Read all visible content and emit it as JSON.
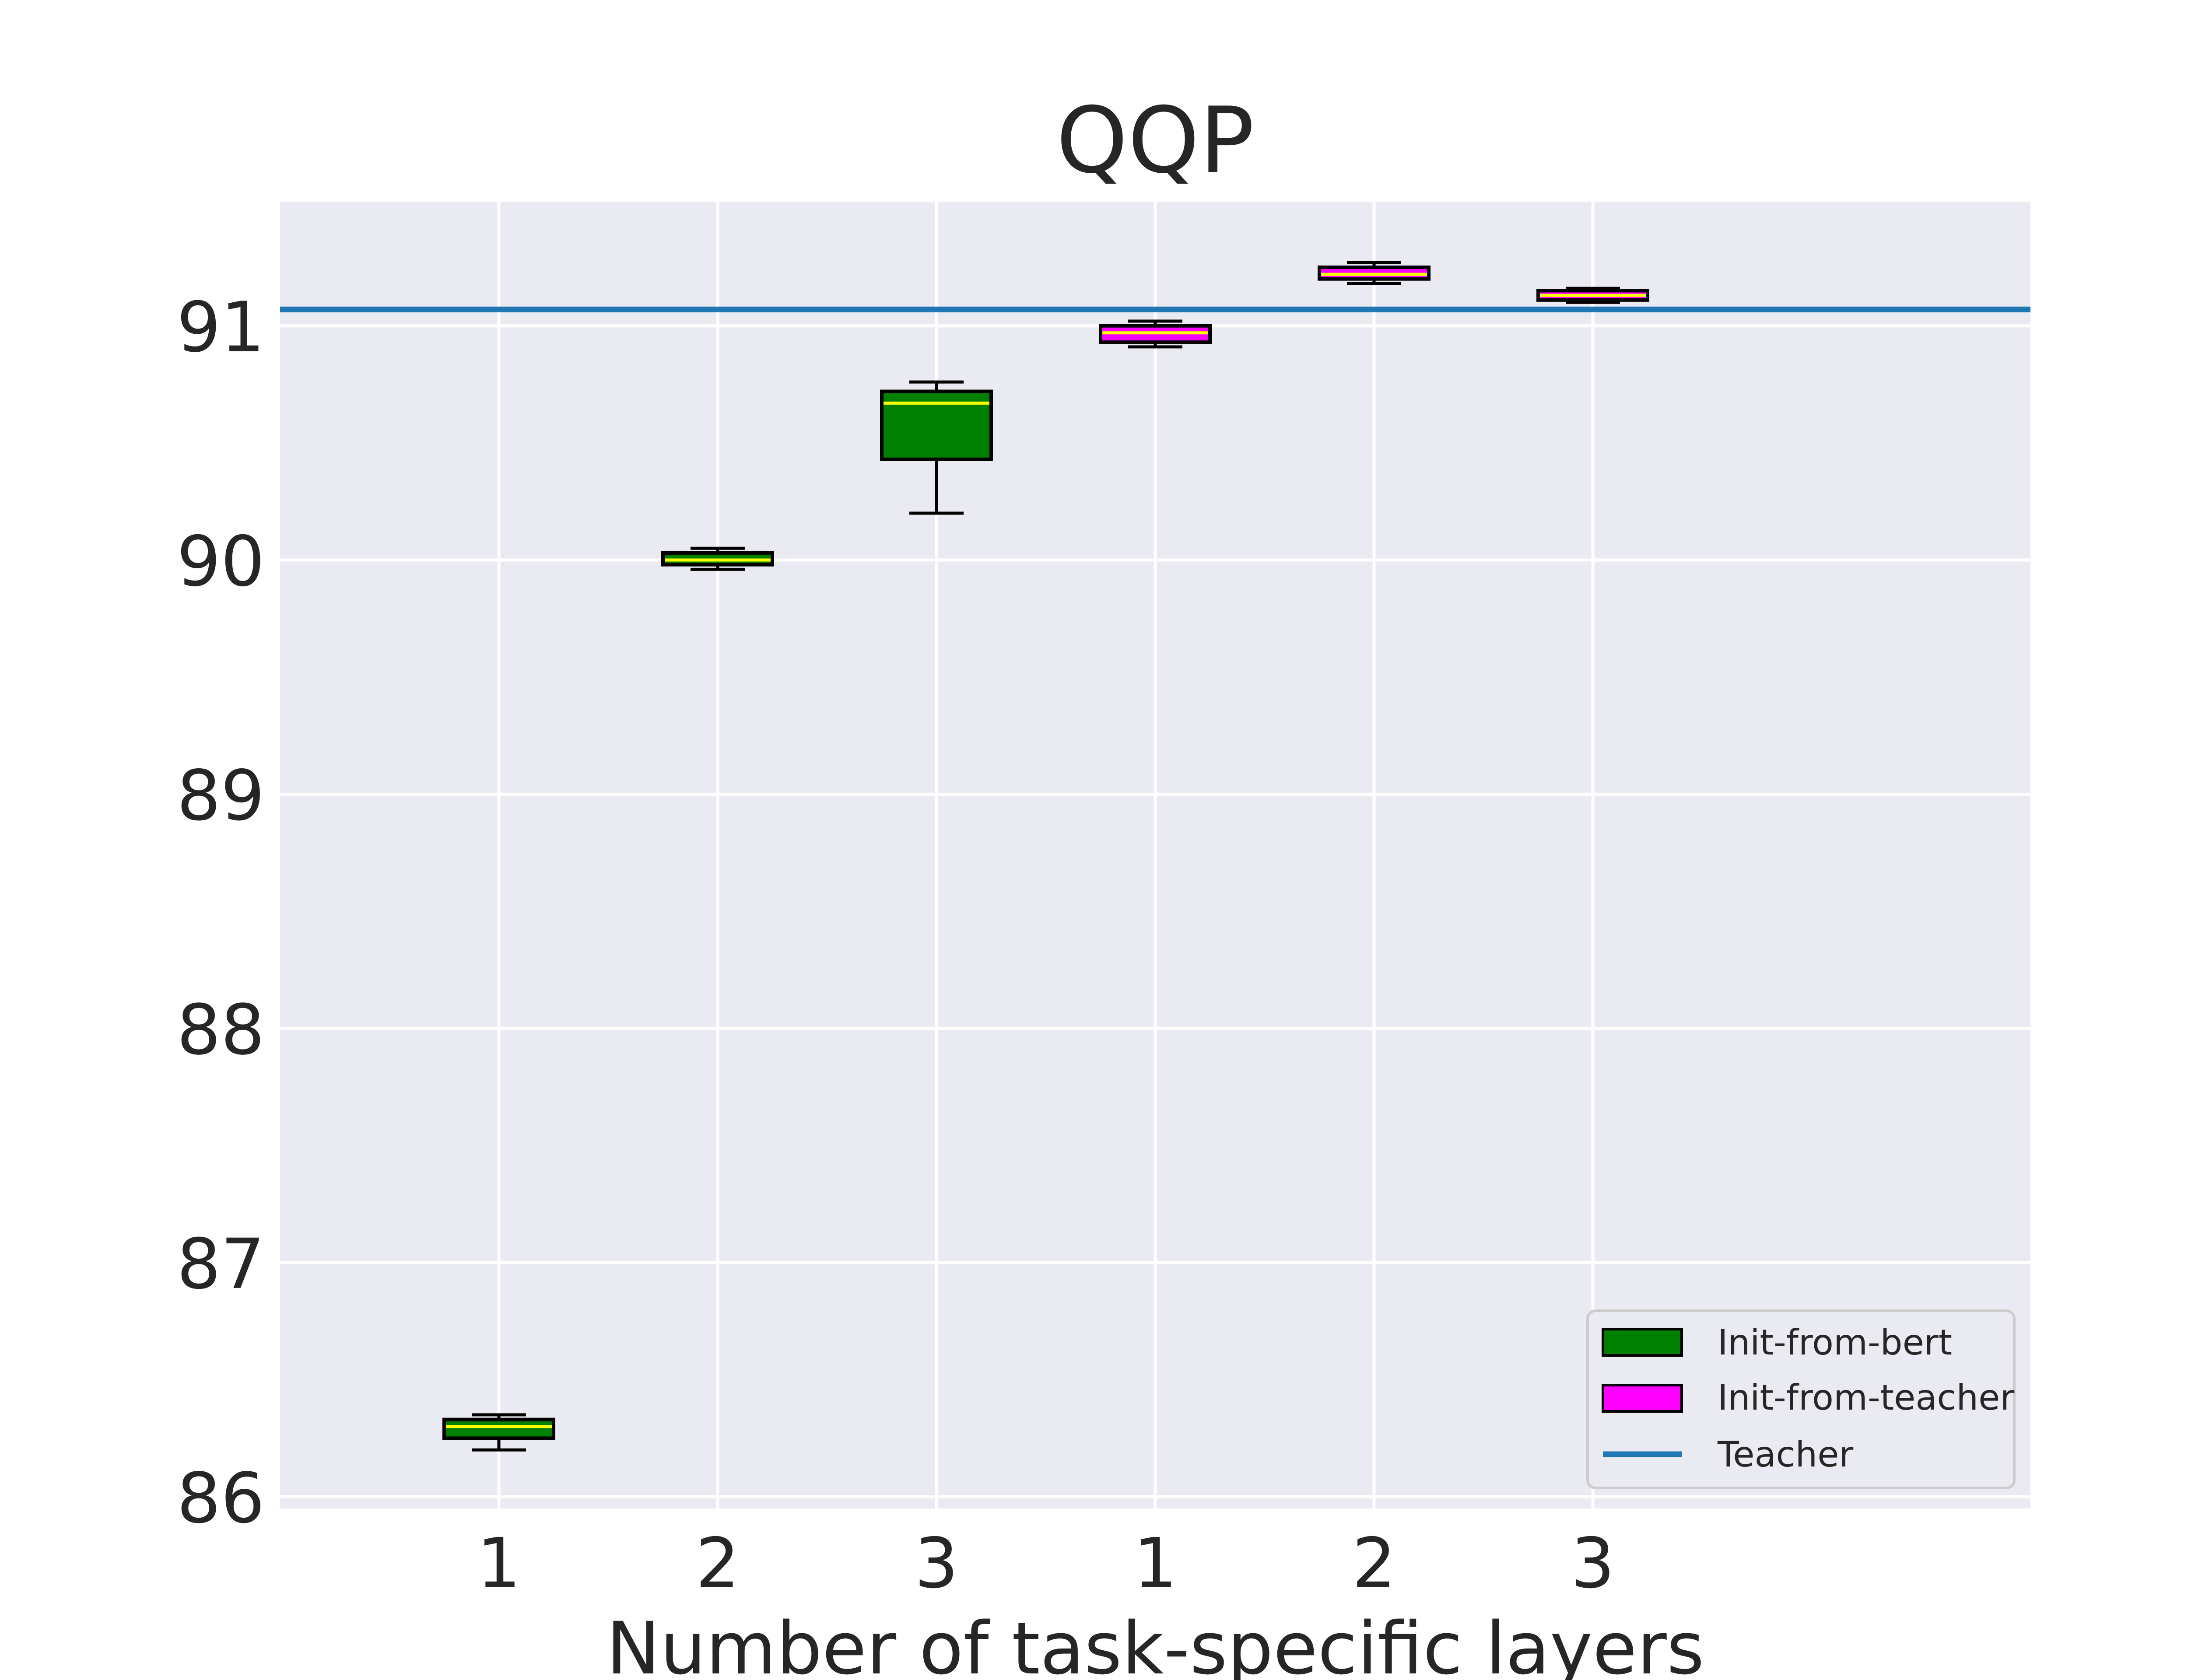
{
  "chart_data": {
    "type": "boxplot",
    "title": "QQP",
    "xlabel": "Number of task-specific layers",
    "ylabel": "",
    "ylim": [
      85.95,
      91.53
    ],
    "xlim": [
      0,
      8
    ],
    "yticks": [
      86,
      87,
      88,
      89,
      90,
      91
    ],
    "categories": [
      "1",
      "2",
      "3",
      "1",
      "2",
      "3"
    ],
    "grid": true,
    "legend_position": "lower-right",
    "series": [
      {
        "name": "Init-from-bert",
        "color": "#008000",
        "boxes": [
          {
            "x": 1,
            "label": "1",
            "whislo": 86.2,
            "q1": 86.25,
            "med": 86.3,
            "q3": 86.33,
            "whishi": 86.35
          },
          {
            "x": 2,
            "label": "2",
            "whislo": 89.96,
            "q1": 89.98,
            "med": 90.0,
            "q3": 90.03,
            "whishi": 90.05
          },
          {
            "x": 3,
            "label": "3",
            "whislo": 90.2,
            "q1": 90.43,
            "med": 90.67,
            "q3": 90.72,
            "whishi": 90.76
          }
        ]
      },
      {
        "name": "Init-from-teacher",
        "color": "#ff00ff",
        "boxes": [
          {
            "x": 4,
            "label": "1",
            "whislo": 90.91,
            "q1": 90.93,
            "med": 90.97,
            "q3": 91.0,
            "whishi": 91.02
          },
          {
            "x": 5,
            "label": "2",
            "whislo": 91.18,
            "q1": 91.2,
            "med": 91.22,
            "q3": 91.25,
            "whishi": 91.27
          },
          {
            "x": 6,
            "label": "3",
            "whislo": 91.1,
            "q1": 91.11,
            "med": 91.13,
            "q3": 91.15,
            "whishi": 91.16
          }
        ]
      }
    ],
    "teacher": {
      "name": "Teacher",
      "value": 91.07,
      "color": "#1f77b4"
    },
    "median_color": "#ffff00",
    "colors": {
      "plot_bg": "#eaeaf2",
      "grid": "#ffffff",
      "text": "#262626"
    }
  }
}
